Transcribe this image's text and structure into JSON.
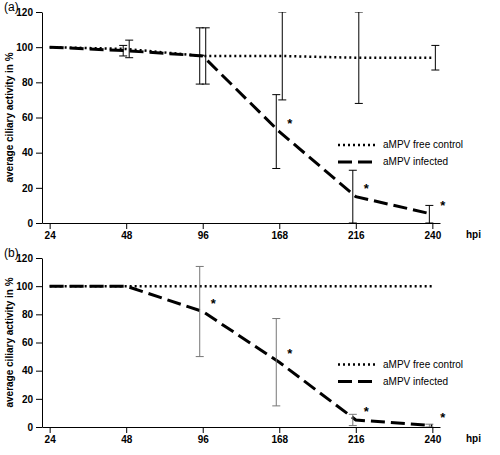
{
  "chart_data": [
    {
      "type": "line",
      "title": "(a)",
      "x_label": "hpi",
      "y_label": "average ciliary activity in %",
      "categories": [
        "24",
        "48",
        "96",
        "168",
        "216",
        "240"
      ],
      "ylim": [
        0,
        120
      ],
      "yticks": [
        0,
        20,
        40,
        60,
        80,
        100,
        120
      ],
      "legend": "right",
      "series": [
        {
          "name": "aMPV free control",
          "color": "#000000",
          "line_style": "dotted",
          "values": [
            100,
            99,
            95,
            95,
            94,
            94
          ],
          "errors": [
            0,
            5,
            16,
            25,
            26,
            7
          ]
        },
        {
          "name": "aMPV infected",
          "color": "#000000",
          "line_style": "dashed",
          "values": [
            100,
            98,
            95,
            52,
            15,
            5
          ],
          "errors": [
            0,
            3,
            16,
            21,
            15,
            5
          ]
        }
      ],
      "annotations": [
        {
          "text": "*",
          "x": "168"
        },
        {
          "text": "*",
          "x": "216"
        },
        {
          "text": "*",
          "x": "240"
        }
      ]
    },
    {
      "type": "line",
      "title": "(b)",
      "x_label": "hpi",
      "y_label": "average ciliary activity in %",
      "categories": [
        "24",
        "48",
        "96",
        "168",
        "216",
        "240"
      ],
      "ylim": [
        0,
        120
      ],
      "yticks": [
        0,
        20,
        40,
        60,
        80,
        100,
        120
      ],
      "legend": "right",
      "series": [
        {
          "name": "aMPV free control",
          "color": "#000000",
          "line_style": "dotted",
          "values": [
            100,
            100,
            100,
            100,
            100,
            100
          ],
          "errors": [
            0,
            0,
            0,
            0,
            0,
            0
          ]
        },
        {
          "name": "aMPV infected",
          "color": "#000000",
          "line_style": "dashed",
          "values": [
            100,
            100,
            82,
            46,
            5,
            1
          ],
          "errors": [
            0,
            0,
            32,
            31,
            4,
            1
          ]
        }
      ],
      "annotations": [
        {
          "text": "*",
          "x": "96"
        },
        {
          "text": "*",
          "x": "168"
        },
        {
          "text": "*",
          "x": "216"
        },
        {
          "text": "*",
          "x": "240"
        }
      ]
    }
  ]
}
